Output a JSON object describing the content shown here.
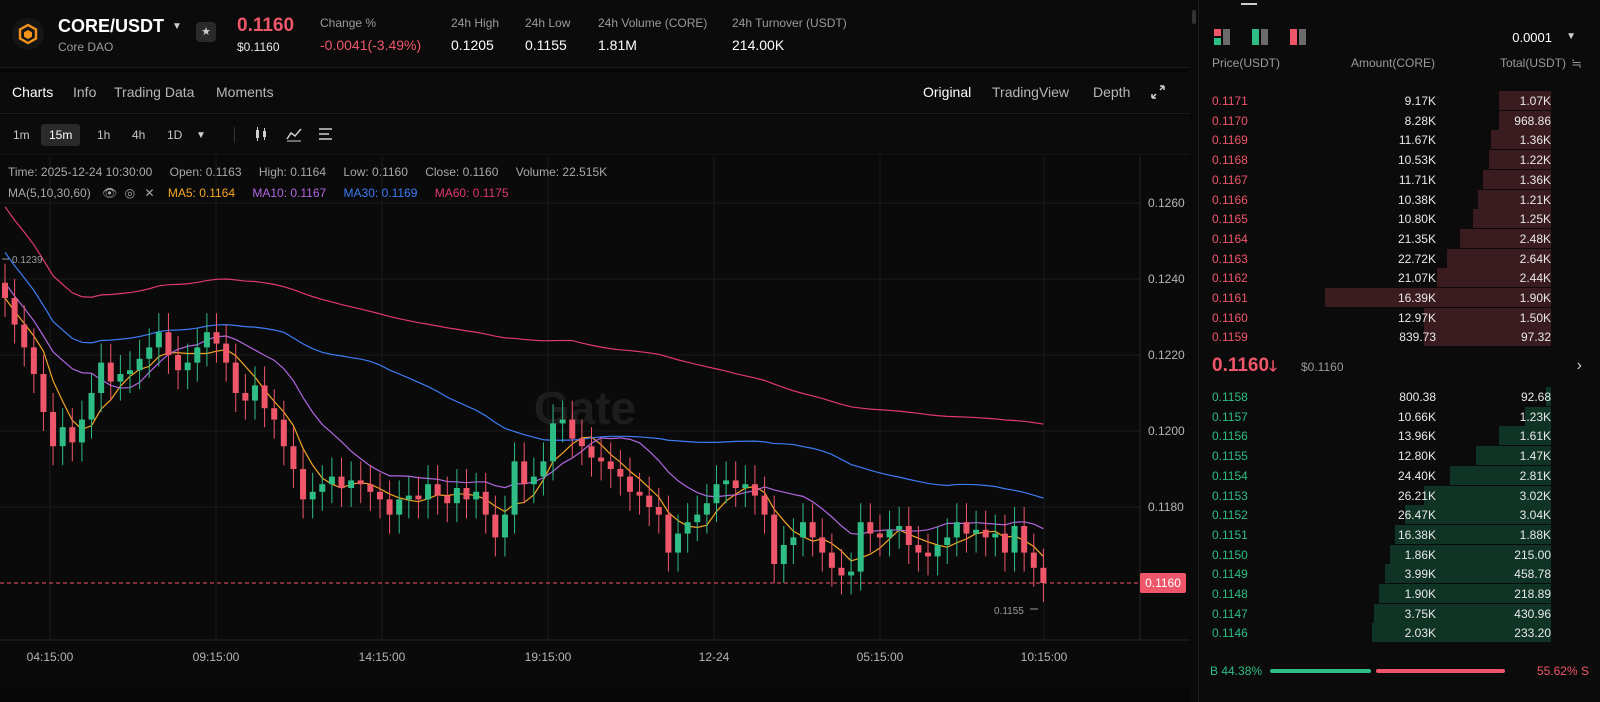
{
  "header": {
    "pair": "CORE/USDT",
    "subtitle": "Core DAO",
    "price": "0.1160",
    "price_usd": "$0.1160",
    "stats": [
      {
        "label": "Change %",
        "value": "-0.0041(-3.49%)",
        "color": "red"
      },
      {
        "label": "24h High",
        "value": "0.1205",
        "color": "white"
      },
      {
        "label": "24h Low",
        "value": "0.1155",
        "color": "white"
      },
      {
        "label": "24h Volume (CORE)",
        "value": "1.81M",
        "color": "white"
      },
      {
        "label": "24h Turnover (USDT)",
        "value": "214.00K",
        "color": "white"
      }
    ]
  },
  "tabs": {
    "left": [
      "Charts",
      "Info",
      "Trading Data",
      "Moments"
    ],
    "right": [
      "Original",
      "TradingView",
      "Depth"
    ]
  },
  "intervals": [
    "1m",
    "15m",
    "1h",
    "4h",
    "1D"
  ],
  "active_interval": "15m",
  "chart_info": {
    "time": "Time: 2025-12-24 10:30:00",
    "open": "Open: 0.1163",
    "high": "High: 0.1164",
    "low": "Low: 0.1160",
    "close": "Close: 0.1160",
    "volume": "Volume: 22.515K",
    "ma_label": "MA(5,10,30,60)",
    "ma5": "MA5: 0.1164",
    "ma10": "MA10: 0.1167",
    "ma30": "MA30: 0.1169",
    "ma60": "MA60: 0.1175"
  },
  "chart_data": {
    "type": "candlestick",
    "y_ticks": [
      "0.1260",
      "0.1240",
      "0.1220",
      "0.1200",
      "0.1180"
    ],
    "x_ticks": [
      "04:15:00",
      "09:15:00",
      "14:15:00",
      "19:15:00",
      "12-24",
      "05:15:00",
      "10:15:00"
    ],
    "ylim": [
      0.1145,
      0.1265
    ],
    "last_price": "0.1160",
    "high_marker": "0.1239",
    "low_marker": "0.1155",
    "watermark": "Gate",
    "closes": [
      0.1235,
      0.1228,
      0.1222,
      0.1215,
      0.1205,
      0.1196,
      0.1201,
      0.1197,
      0.1203,
      0.121,
      0.1218,
      0.1213,
      0.1215,
      0.1216,
      0.1219,
      0.1222,
      0.1226,
      0.122,
      0.1216,
      0.1218,
      0.1222,
      0.1226,
      0.1223,
      0.1218,
      0.121,
      0.1208,
      0.1212,
      0.1206,
      0.1203,
      0.1196,
      0.119,
      0.1182,
      0.1184,
      0.1186,
      0.1188,
      0.1185,
      0.1187,
      0.1186,
      0.1184,
      0.1182,
      0.1178,
      0.1182,
      0.1183,
      0.1182,
      0.1186,
      0.1183,
      0.1181,
      0.1185,
      0.1182,
      0.1184,
      0.1178,
      0.1172,
      0.1178,
      0.1192,
      0.1186,
      0.1188,
      0.1192,
      0.1202,
      0.1203,
      0.1198,
      0.1196,
      0.1193,
      0.1192,
      0.119,
      0.1188,
      0.1184,
      0.1183,
      0.118,
      0.1178,
      0.1168,
      0.1173,
      0.1176,
      0.1178,
      0.1181,
      0.1186,
      0.1187,
      0.1185,
      0.1186,
      0.1183,
      0.1178,
      0.1165,
      0.117,
      0.1172,
      0.1176,
      0.1172,
      0.1168,
      0.1164,
      0.1162,
      0.1163,
      0.1176,
      0.1173,
      0.1172,
      0.1174,
      0.1175,
      0.117,
      0.1168,
      0.1167,
      0.117,
      0.1172,
      0.1176,
      0.1173,
      0.1174,
      0.1172,
      0.1173,
      0.1168,
      0.1175,
      0.1168,
      0.1164,
      0.116
    ],
    "series": [
      {
        "name": "MA5",
        "color": "#f5a623",
        "value": "0.1164"
      },
      {
        "name": "MA10",
        "color": "#b266e0",
        "value": "0.1167"
      },
      {
        "name": "MA30",
        "color": "#3d7cf5",
        "value": "0.1169"
      },
      {
        "name": "MA60",
        "color": "#e0396e",
        "value": "0.1175"
      }
    ]
  },
  "orderbook": {
    "precision": "0.0001",
    "headers": [
      "Price(USDT)",
      "Amount(CORE)",
      "Total(USDT)"
    ],
    "asks": [
      {
        "price": "0.1171",
        "amount": "9.17K",
        "total": "1.07K",
        "depth": 0.2
      },
      {
        "price": "0.1170",
        "amount": "8.28K",
        "total": "968.86",
        "depth": 0.2
      },
      {
        "price": "0.1169",
        "amount": "11.67K",
        "total": "1.36K",
        "depth": 0.23
      },
      {
        "price": "0.1168",
        "amount": "10.53K",
        "total": "1.22K",
        "depth": 0.24
      },
      {
        "price": "0.1167",
        "amount": "11.71K",
        "total": "1.36K",
        "depth": 0.26
      },
      {
        "price": "0.1166",
        "amount": "10.38K",
        "total": "1.21K",
        "depth": 0.28
      },
      {
        "price": "0.1165",
        "amount": "10.80K",
        "total": "1.25K",
        "depth": 0.3
      },
      {
        "price": "0.1164",
        "amount": "21.35K",
        "total": "2.48K",
        "depth": 0.35
      },
      {
        "price": "0.1163",
        "amount": "22.72K",
        "total": "2.64K",
        "depth": 0.4
      },
      {
        "price": "0.1162",
        "amount": "21.07K",
        "total": "2.44K",
        "depth": 0.44
      },
      {
        "price": "0.1161",
        "amount": "16.39K",
        "total": "1.90K",
        "depth": 0.87
      },
      {
        "price": "0.1160",
        "amount": "12.97K",
        "total": "1.50K",
        "depth": 0.49
      },
      {
        "price": "0.1159",
        "amount": "839.73",
        "total": "97.32",
        "depth": 0.49
      }
    ],
    "mid_price": "0.1160",
    "mid_usd": "$0.1160",
    "bids": [
      {
        "price": "0.1158",
        "amount": "800.38",
        "total": "92.68",
        "depth": 0.02
      },
      {
        "price": "0.1157",
        "amount": "10.66K",
        "total": "1.23K",
        "depth": 0.1
      },
      {
        "price": "0.1156",
        "amount": "13.96K",
        "total": "1.61K",
        "depth": 0.2
      },
      {
        "price": "0.1155",
        "amount": "12.80K",
        "total": "1.47K",
        "depth": 0.29
      },
      {
        "price": "0.1154",
        "amount": "24.40K",
        "total": "2.81K",
        "depth": 0.39
      },
      {
        "price": "0.1153",
        "amount": "26.21K",
        "total": "3.02K",
        "depth": 0.49
      },
      {
        "price": "0.1152",
        "amount": "26.47K",
        "total": "3.04K",
        "depth": 0.56
      },
      {
        "price": "0.1151",
        "amount": "16.38K",
        "total": "1.88K",
        "depth": 0.6
      },
      {
        "price": "0.1150",
        "amount": "1.86K",
        "total": "215.00",
        "depth": 0.62
      },
      {
        "price": "0.1149",
        "amount": "3.99K",
        "total": "458.78",
        "depth": 0.64
      },
      {
        "price": "0.1148",
        "amount": "1.90K",
        "total": "218.89",
        "depth": 0.66
      },
      {
        "price": "0.1147",
        "amount": "3.75K",
        "total": "430.96",
        "depth": 0.68
      },
      {
        "price": "0.1146",
        "amount": "2.03K",
        "total": "233.20",
        "depth": 0.69
      }
    ],
    "buy_ratio": "B 44.38%",
    "sell_ratio": "55.62% S",
    "buy_fraction": 0.4438
  },
  "colors": {
    "up": "#2ebd85",
    "down": "#f0566a",
    "bg": "#0a0a0a"
  }
}
